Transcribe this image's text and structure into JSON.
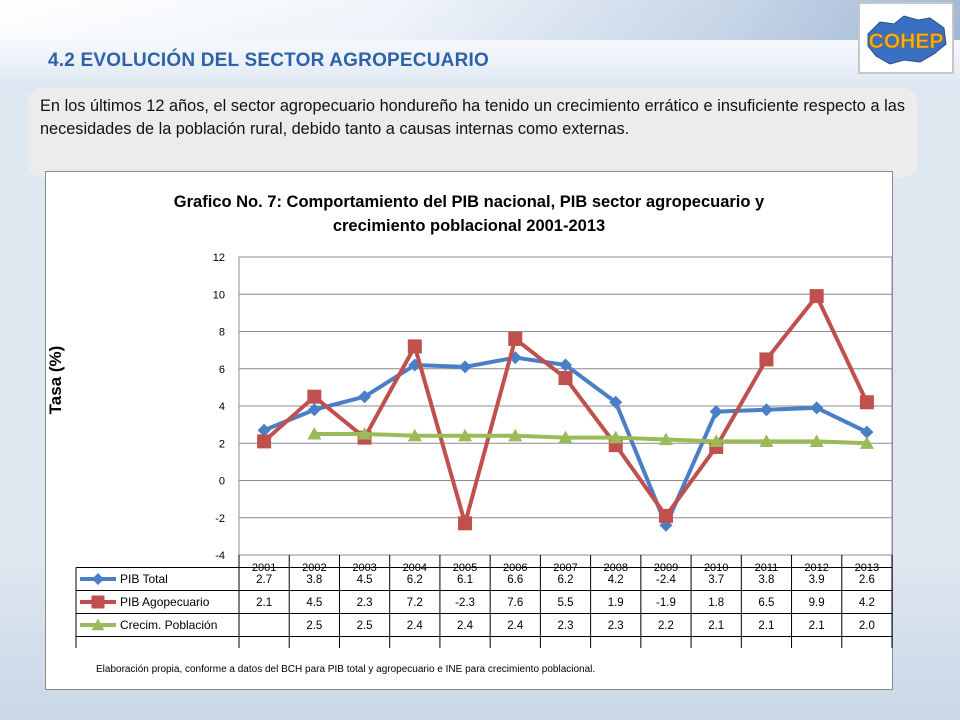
{
  "header": {
    "title": "4.2 EVOLUCIÓN DEL SECTOR AGROPECUARIO",
    "logo_text": "COHEP"
  },
  "intro": {
    "text": "En los últimos 12 años, el sector agropecuario hondureño ha tenido un crecimiento errático e insuficiente respecto a las necesidades de la población rural, debido tanto a causas internas como externas."
  },
  "colors": {
    "pib_total": "#4a7ec7",
    "pib_agro": "#c0504d",
    "poblacion": "#9bbb59",
    "title": "#2e62a8"
  },
  "chart_data": {
    "type": "line",
    "title": "Grafico No. 7: Comportamiento del PIB nacional,  PIB sector agropecuario  y crecimiento poblacional  2001-2013",
    "title_lines": [
      "Grafico No. 7: Comportamiento del PIB nacional,  PIB sector agropecuario  y",
      "crecimiento poblacional  2001-2013"
    ],
    "ylabel": "Tasa (%)",
    "ylim": [
      -4,
      12
    ],
    "yticks": [
      -4,
      -2,
      0,
      2,
      4,
      6,
      8,
      10,
      12
    ],
    "grid": true,
    "categories": [
      "2001",
      "2002",
      "2003",
      "2004",
      "2005",
      "2006",
      "2007",
      "2008",
      "2009",
      "2010",
      "2011",
      "2012",
      "2013"
    ],
    "series": [
      {
        "name": "PIB Total",
        "marker": "diamond",
        "values": [
          2.7,
          3.8,
          4.5,
          6.2,
          6.1,
          6.6,
          6.2,
          4.2,
          -2.4,
          3.7,
          3.8,
          3.9,
          2.6
        ]
      },
      {
        "name": "PIB Agopecuario",
        "marker": "square",
        "values": [
          2.1,
          4.5,
          2.3,
          7.2,
          -2.3,
          7.6,
          5.5,
          1.9,
          -1.9,
          1.8,
          6.5,
          9.9,
          4.2
        ]
      },
      {
        "name": "Crecim. Población",
        "marker": "triangle",
        "values": [
          null,
          2.5,
          2.5,
          2.4,
          2.4,
          2.4,
          2.3,
          2.3,
          2.2,
          2.1,
          2.1,
          2.1,
          2.0
        ]
      }
    ],
    "table_values": [
      [
        "2.7",
        "3.8",
        "4.5",
        "6.2",
        "6.1",
        "6.6",
        "6.2",
        "4.2",
        "-2.4",
        "3.7",
        "3.8",
        "3.9",
        "2.6"
      ],
      [
        "2.1",
        "4.5",
        "2.3",
        "7.2",
        "-2.3",
        "7.6",
        "5.5",
        "1.9",
        "-1.9",
        "1.8",
        "6.5",
        "9.9",
        "4.2"
      ],
      [
        "",
        "2.5",
        "2.5",
        "2.4",
        "2.4",
        "2.4",
        "2.3",
        "2.3",
        "2.2",
        "2.1",
        "2.1",
        "2.1",
        "2.0"
      ]
    ],
    "source_note": "Elaboración propia, conforme a datos del BCH para PIB total y agropecuario e INE para crecimiento poblacional."
  }
}
